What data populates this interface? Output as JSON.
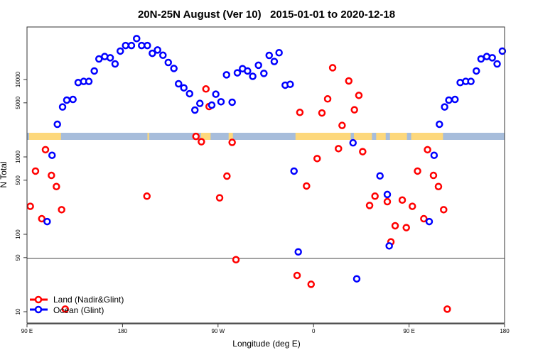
{
  "chart_data": {
    "type": "scatter",
    "title": "20N-25N August (Ver 10)   2015-01-01 to 2020-12-18",
    "xlabel": "Longitude (deg E)",
    "ylabel": "N Total",
    "x_ticks": [
      {
        "value": 90,
        "label": "90 E"
      },
      {
        "value": 180,
        "label": "180"
      },
      {
        "value": 270,
        "label": "90 W"
      },
      {
        "value": 360,
        "label": "0"
      },
      {
        "value": 450,
        "label": "90 E"
      },
      {
        "value": 540,
        "label": "180"
      }
    ],
    "xlim_deg_east_continuous": [
      90,
      540
    ],
    "y_scale": "log",
    "ylim": [
      7,
      48000
    ],
    "y_ticks": [
      10,
      50,
      100,
      500,
      1000,
      5000,
      10000
    ],
    "reference_line_y": 50,
    "background": "world map strip 20N-25N (land yellow, ocean blue-gray)",
    "legend_position": "bottom-left",
    "colors": {
      "land": "#ff0000",
      "ocean": "#0000ff",
      "map_land": "#fdd87c",
      "map_ocean": "#a7bddb"
    },
    "series": [
      {
        "name": "Land (Nadir&Glint)",
        "color": "#ff0000",
        "points": [
          [
            93.1,
            230
          ],
          [
            98.0,
            656
          ],
          [
            103.9,
            159
          ],
          [
            107.4,
            1240
          ],
          [
            113.0,
            577
          ],
          [
            117.7,
            414
          ],
          [
            122.6,
            208
          ],
          [
            126.0,
            10.8
          ],
          [
            -157.0,
            311
          ],
          [
            -110.8,
            1840
          ],
          [
            -105.7,
            1570
          ],
          [
            -101.4,
            7550
          ],
          [
            -98.4,
            4480
          ],
          [
            -88.5,
            296
          ],
          [
            -81.6,
            565
          ],
          [
            -76.7,
            1540
          ],
          [
            -73.1,
            47
          ],
          [
            -15.5,
            29.4
          ],
          [
            -12.9,
            3760
          ],
          [
            -6.6,
            421
          ],
          [
            -2.3,
            22.6
          ],
          [
            3.4,
            952
          ],
          [
            7.9,
            3700
          ],
          [
            13.3,
            5620
          ],
          [
            18.0,
            14200
          ],
          [
            23.5,
            1280
          ],
          [
            26.9,
            2550
          ],
          [
            33.2,
            9590
          ],
          [
            38.5,
            4060
          ],
          [
            42.7,
            6240
          ],
          [
            46.3,
            1170
          ],
          [
            52.8,
            236
          ],
          [
            57.9,
            311
          ],
          [
            69.5,
            264
          ],
          [
            72.9,
            79.8
          ],
          [
            76.9,
            129
          ],
          [
            83.6,
            277
          ],
          [
            87.4,
            122
          ]
        ]
      },
      {
        "name": "Ocean (Glint)",
        "color": "#0000ff",
        "points": [
          [
            113.6,
            1050
          ],
          [
            109.0,
            146
          ],
          [
            118.6,
            2640
          ],
          [
            123.5,
            4420
          ],
          [
            127.5,
            5420
          ],
          [
            133.3,
            5530
          ],
          [
            138.2,
            9130
          ],
          [
            143.4,
            9450
          ],
          [
            148.3,
            9450
          ],
          [
            153.4,
            12900
          ],
          [
            157.8,
            18450
          ],
          [
            163.2,
            19800
          ],
          [
            168.4,
            19100
          ],
          [
            173.0,
            15900
          ],
          [
            177.9,
            23300
          ],
          [
            -177.1,
            27500
          ],
          [
            -171.6,
            27500
          ],
          [
            -166.7,
            33800
          ],
          [
            -162.0,
            27500
          ],
          [
            -156.6,
            27500
          ],
          [
            -151.9,
            21800
          ],
          [
            -147.0,
            24100
          ],
          [
            -141.9,
            20600
          ],
          [
            -136.9,
            16600
          ],
          [
            -131.6,
            13900
          ],
          [
            -127.2,
            8810
          ],
          [
            -122.2,
            7810
          ],
          [
            -116.8,
            6560
          ],
          [
            -111.8,
            4030
          ],
          [
            -107.1,
            4910
          ],
          [
            -95.9,
            4670
          ],
          [
            -92.1,
            6460
          ],
          [
            -87.2,
            5160
          ],
          [
            -82.0,
            11500
          ],
          [
            -76.7,
            5090
          ],
          [
            -71.8,
            12200
          ],
          [
            -66.9,
            13800
          ],
          [
            -62.2,
            12900
          ],
          [
            -57.3,
            11000
          ],
          [
            -51.9,
            15300
          ],
          [
            -46.8,
            12000
          ],
          [
            -41.8,
            20500
          ],
          [
            -37.0,
            17100
          ],
          [
            -32.5,
            22200
          ],
          [
            -26.7,
            8450
          ],
          [
            -22.0,
            8680
          ],
          [
            -18.4,
            656
          ],
          [
            -14.4,
            59.3
          ],
          [
            37.2,
            1520
          ],
          [
            40.7,
            26.6
          ],
          [
            62.6,
            569
          ],
          [
            69.5,
            327
          ],
          [
            71.3,
            70.8
          ]
        ]
      }
    ]
  }
}
